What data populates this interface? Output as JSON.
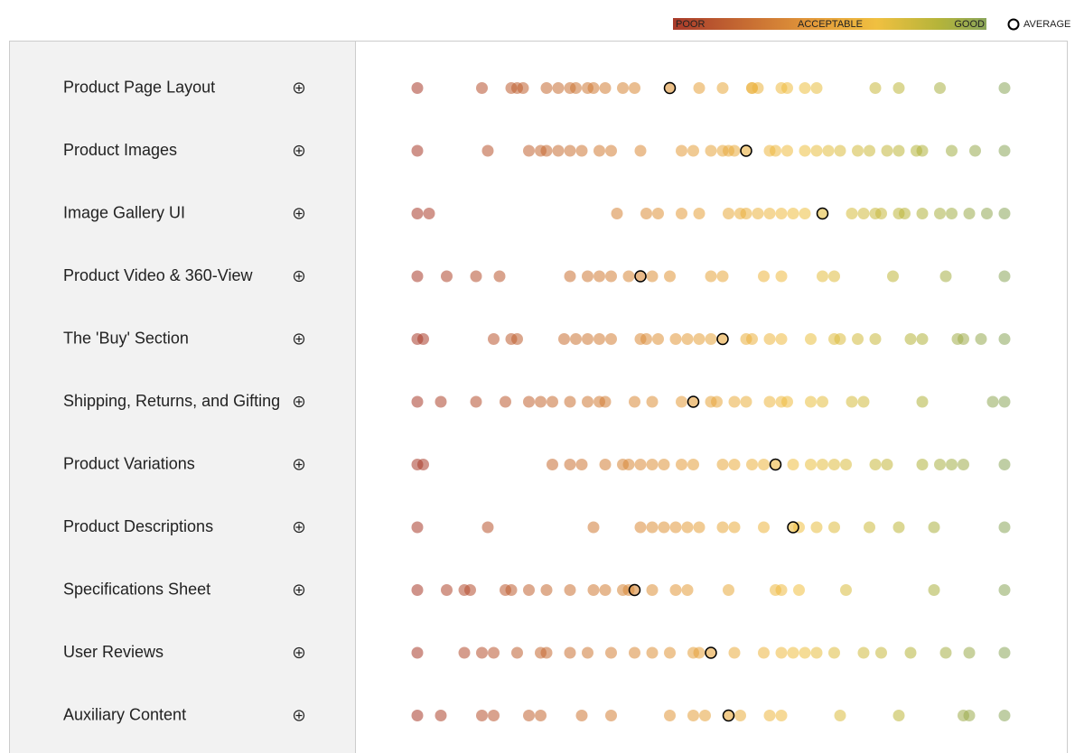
{
  "legend": {
    "poor": "POOR",
    "acceptable": "ACCEPTABLE",
    "good": "GOOD",
    "average": "AVERAGE"
  },
  "rows": [
    {
      "label": "Product Page Layout",
      "scores": [
        0,
        11,
        16,
        17,
        18,
        22,
        24,
        26,
        27,
        29,
        30,
        32,
        35,
        37,
        48,
        52,
        57,
        57,
        58,
        62,
        63,
        66,
        68,
        78,
        82,
        89,
        100
      ],
      "average": 43
    },
    {
      "label": "Product Images",
      "scores": [
        0,
        12,
        19,
        21,
        22,
        24,
        26,
        28,
        31,
        33,
        38,
        45,
        47,
        50,
        52,
        53,
        54,
        60,
        61,
        63,
        66,
        68,
        70,
        72,
        75,
        77,
        80,
        82,
        85,
        86,
        91,
        95,
        100
      ],
      "average": 56
    },
    {
      "label": "Image Gallery UI",
      "scores": [
        0,
        2,
        34,
        39,
        41,
        45,
        48,
        53,
        55,
        56,
        58,
        60,
        62,
        64,
        66,
        74,
        76,
        78,
        79,
        82,
        83,
        86,
        89,
        91,
        94,
        97,
        100
      ],
      "average": 69
    },
    {
      "label": "Product Video & 360-View",
      "scores": [
        0,
        5,
        10,
        14,
        26,
        29,
        31,
        33,
        36,
        40,
        43,
        50,
        52,
        59,
        62,
        69,
        71,
        81,
        90,
        100
      ],
      "average": 38
    },
    {
      "label": "The 'Buy' Section",
      "scores": [
        0,
        1,
        13,
        16,
        17,
        25,
        27,
        29,
        31,
        33,
        38,
        39,
        41,
        44,
        46,
        48,
        50,
        56,
        57,
        60,
        62,
        67,
        71,
        72,
        75,
        78,
        84,
        86,
        92,
        93,
        96,
        100
      ],
      "average": 52
    },
    {
      "label": "Shipping, Returns, and Gifting",
      "scores": [
        0,
        4,
        10,
        15,
        19,
        21,
        23,
        26,
        29,
        31,
        32,
        37,
        40,
        45,
        50,
        51,
        54,
        56,
        60,
        62,
        63,
        67,
        69,
        74,
        76,
        86,
        98,
        100
      ],
      "average": 47
    },
    {
      "label": "Product Variations",
      "scores": [
        0,
        1,
        23,
        26,
        28,
        32,
        35,
        36,
        38,
        40,
        42,
        45,
        47,
        52,
        54,
        57,
        59,
        64,
        67,
        69,
        71,
        73,
        78,
        80,
        86,
        89,
        91,
        93,
        100
      ],
      "average": 61
    },
    {
      "label": "Product Descriptions",
      "scores": [
        0,
        12,
        30,
        38,
        40,
        42,
        44,
        46,
        48,
        52,
        54,
        59,
        65,
        68,
        71,
        77,
        82,
        88,
        100
      ],
      "average": 64
    },
    {
      "label": "Specifications Sheet",
      "scores": [
        0,
        5,
        8,
        9,
        15,
        16,
        19,
        22,
        26,
        30,
        32,
        35,
        36,
        40,
        44,
        46,
        53,
        61,
        62,
        65,
        73,
        88,
        100
      ],
      "average": 37
    },
    {
      "label": "User Reviews",
      "scores": [
        0,
        8,
        11,
        13,
        17,
        21,
        22,
        26,
        29,
        33,
        37,
        40,
        43,
        47,
        48,
        54,
        59,
        62,
        64,
        66,
        68,
        71,
        76,
        79,
        84,
        90,
        94,
        100
      ],
      "average": 50
    },
    {
      "label": "Auxiliary Content",
      "scores": [
        0,
        4,
        11,
        13,
        19,
        21,
        28,
        33,
        43,
        47,
        49,
        55,
        60,
        62,
        72,
        82,
        93,
        94,
        100
      ],
      "average": 53
    }
  ]
}
